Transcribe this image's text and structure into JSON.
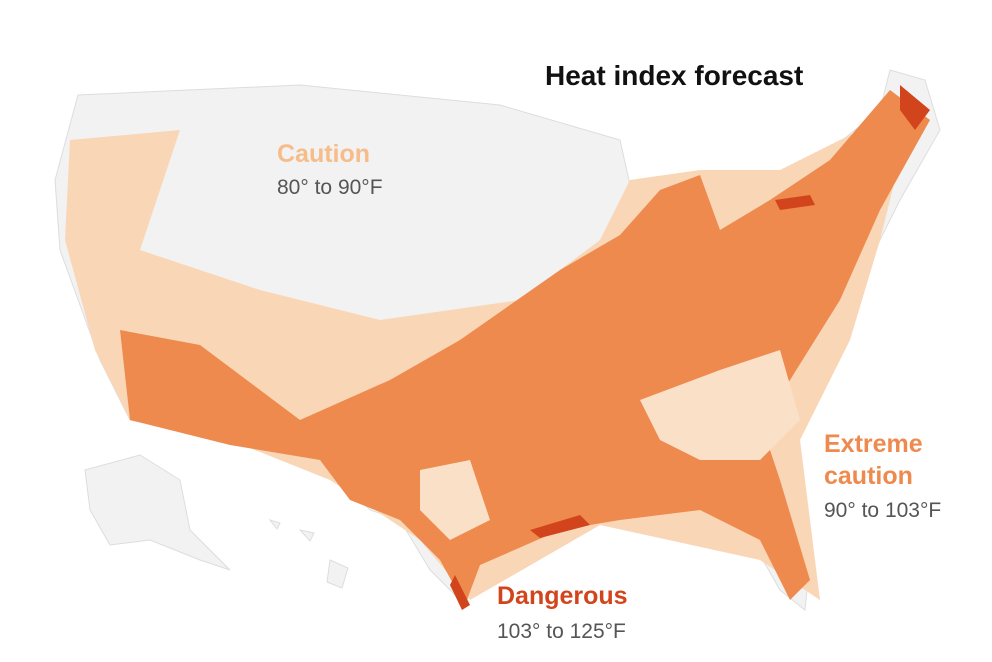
{
  "title": "Heat index forecast",
  "legend": [
    {
      "label": "Caution",
      "range": "80° to 90°F",
      "color": "#f6bd8a"
    },
    {
      "label": "Extreme caution",
      "range": "90° to 103°F",
      "color": "#ee8a4e"
    },
    {
      "label": "Dangerous",
      "range": "103° to 125°F",
      "color": "#d2451c"
    }
  ]
}
